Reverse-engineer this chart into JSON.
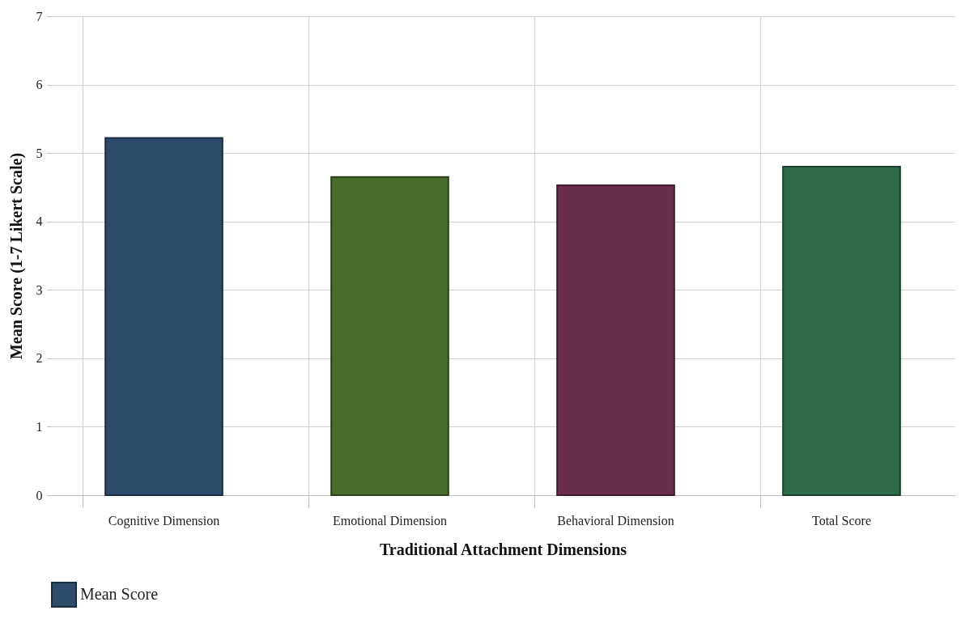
{
  "chart_data": {
    "type": "bar",
    "xlabel": "Traditional Attachment Dimensions",
    "ylabel": "Mean Score (1-7 Likert Scale)",
    "categories": [
      "Cognitive Dimension",
      "Emotional Dimension",
      "Behavioral Dimension",
      "Total Score"
    ],
    "series": [
      {
        "name": "Mean Score",
        "values": [
          5.22,
          4.65,
          4.53,
          4.8
        ]
      }
    ],
    "colors": [
      "#2e4a6b",
      "#4a6b2e",
      "#6b2e4a",
      "#2e6b4a"
    ],
    "ylim": [
      0,
      7
    ],
    "yticks": [
      0,
      1,
      2,
      3,
      4,
      5,
      6,
      7
    ],
    "grid": true,
    "legend": "bottom"
  }
}
